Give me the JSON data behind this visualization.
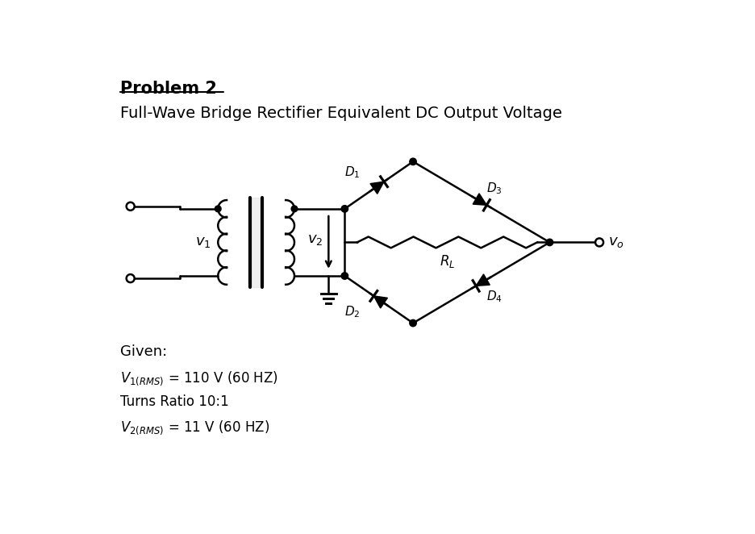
{
  "title": "Problem 2",
  "subtitle": "Full-Wave Bridge Rectifier Equivalent DC Output Voltage",
  "given_label": "Given:",
  "given_line1": "$V_{1(RMS)}$ = 110 V (60 HZ)",
  "given_line2": "Turns Ratio 10:1",
  "given_line3": "$V_{2(RMS)}$ = 11 V (60 HZ)",
  "bg_color": "#ffffff",
  "line_color": "#000000",
  "font_color": "#000000"
}
